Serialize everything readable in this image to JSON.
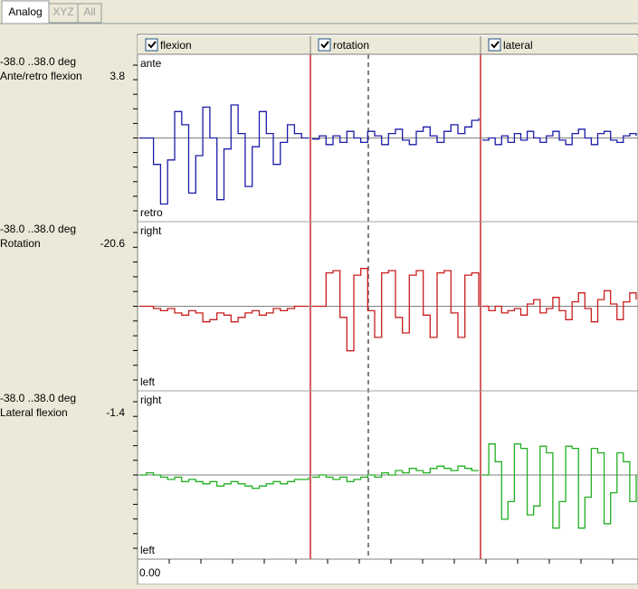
{
  "tabs": [
    "Analog",
    "XYZ",
    "All"
  ],
  "columns": [
    "flexion",
    "rotation",
    "lateral"
  ],
  "time_label": "0.00",
  "rows": [
    {
      "range": "-38.0 ..38.0 deg",
      "name": "Ante/retro flexion",
      "value": "3.8",
      "top": "ante",
      "bottom": "retro",
      "color": "#1c1ca8",
      "traces": [
        [
          0,
          0,
          -12,
          -30,
          -10,
          12,
          6,
          -25,
          -8,
          14,
          0,
          -28,
          -5,
          15,
          2,
          -22,
          -4,
          12,
          2,
          -12,
          -2,
          6,
          2,
          0,
          0
        ],
        [
          -0.5,
          1,
          -3,
          1,
          -2,
          3,
          0,
          -2,
          3,
          1,
          -3,
          2,
          4,
          -1,
          -3,
          3,
          5,
          1,
          -2,
          3,
          6,
          2,
          5,
          8,
          9
        ],
        [
          -1,
          0,
          -3,
          1,
          -2,
          2,
          -1,
          3,
          0,
          -2,
          1,
          3,
          -1,
          -3,
          2,
          4,
          0,
          -3,
          2,
          3,
          -1,
          -2,
          1,
          2,
          1
        ]
      ]
    },
    {
      "range": "-38.0 ..38.0 deg",
      "name": "Rotation",
      "value": "-20.6",
      "top": "right",
      "bottom": "left",
      "color": "#c81e1e",
      "traces": [
        [
          0,
          0,
          -1,
          -2,
          -1,
          -3,
          -4,
          -2,
          -3,
          -7,
          -6,
          -3,
          -4,
          -7,
          -5,
          -3,
          -2,
          -4,
          -3,
          -1,
          -2,
          -1,
          0,
          0,
          0
        ],
        [
          0,
          0,
          15,
          16,
          -5,
          -20,
          14,
          17,
          -2,
          -14,
          15,
          16,
          -5,
          -12,
          14,
          16,
          -4,
          -14,
          15,
          16,
          -3,
          -14,
          14,
          15,
          0
        ],
        [
          0,
          -2,
          0,
          -3,
          -2,
          -1,
          -4,
          1,
          3,
          -3,
          -1,
          4,
          -2,
          -6,
          2,
          6,
          -1,
          -7,
          3,
          7,
          1,
          -6,
          2,
          6,
          3
        ]
      ]
    },
    {
      "range": "-38.0 ..38.0 deg",
      "name": "Lateral flexion",
      "value": "-1.4",
      "top": "right",
      "bottom": "left",
      "color": "#22b022",
      "traces": [
        [
          0,
          1,
          0,
          -1,
          -2,
          -1,
          -3,
          -2,
          -3,
          -4,
          -3,
          -5,
          -4,
          -3,
          -4,
          -5,
          -6,
          -5,
          -4,
          -3,
          -4,
          -3,
          -2,
          -2,
          -1
        ],
        [
          -1,
          0,
          -1,
          -2,
          -1,
          -3,
          -2,
          -1,
          0,
          -1,
          1,
          0,
          2,
          1,
          3,
          2,
          1,
          3,
          4,
          3,
          2,
          4,
          3,
          2,
          2
        ],
        [
          0,
          14,
          6,
          -20,
          -12,
          14,
          12,
          -18,
          -14,
          13,
          10,
          -24,
          -12,
          13,
          12,
          -24,
          -10,
          12,
          10,
          -22,
          -8,
          10,
          6,
          -12,
          0
        ]
      ]
    }
  ],
  "ylim": [
    -38,
    38
  ]
}
